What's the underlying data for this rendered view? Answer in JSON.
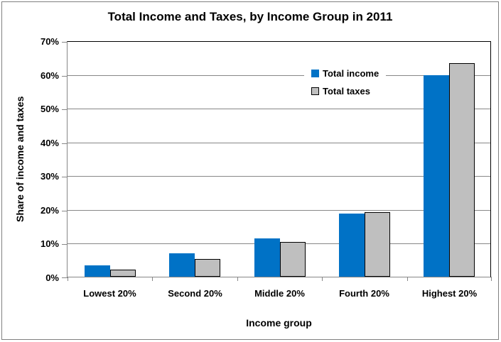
{
  "colors": {
    "income_blue": "#0072C6",
    "taxes_gray": "#BFBFBF",
    "bar_border": "#000000",
    "gridline": "#878787",
    "axis": "#878787",
    "plot_border": "#000000",
    "frame_border": "#808080",
    "text": "#000000",
    "background": "#FFFFFF"
  },
  "chart_data": {
    "type": "bar",
    "title": "Total Income and Taxes, by Income Group in 2011",
    "xlabel": "Income group",
    "ylabel": "Share of income and taxes",
    "categories": [
      "Lowest 20%",
      "Second 20%",
      "Middle 20%",
      "Fourth 20%",
      "Highest 20%"
    ],
    "series": [
      {
        "name": "Total income",
        "color": "#0072C6",
        "values": [
          3.4,
          7.0,
          11.4,
          18.8,
          59.8
        ]
      },
      {
        "name": "Total taxes",
        "color": "#BFBFBF",
        "values": [
          2.1,
          5.3,
          10.3,
          19.2,
          63.2
        ]
      }
    ],
    "ylim": [
      0,
      70
    ],
    "ytick_step": 10,
    "ytick_labels": [
      "0%",
      "10%",
      "20%",
      "30%",
      "40%",
      "50%",
      "60%",
      "70%"
    ],
    "grid": true,
    "legend_position": "inside-top-right"
  }
}
